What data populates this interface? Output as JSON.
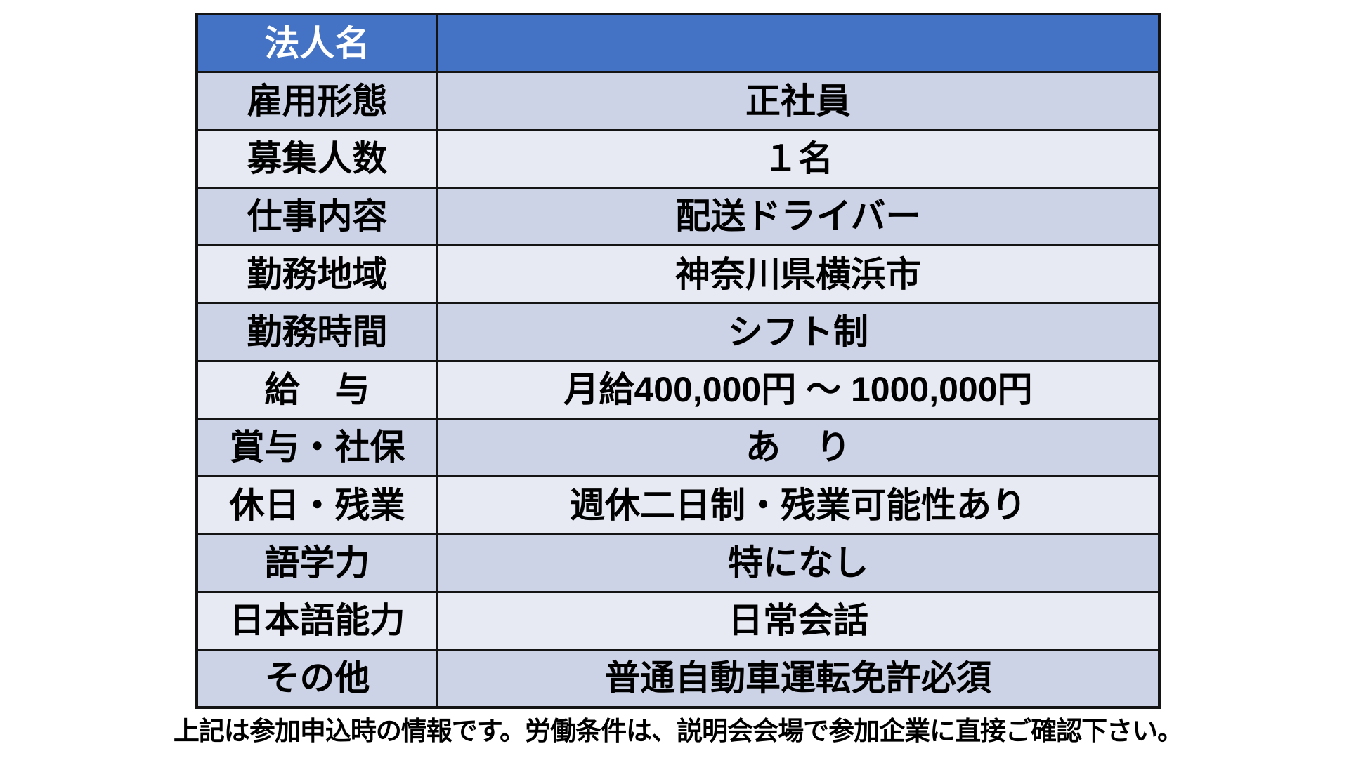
{
  "colors": {
    "header_bg": "#4472C4",
    "header_text": "#FFFFFF",
    "row_dark_bg": "#CDD3E6",
    "row_light_bg": "#E8EAF3",
    "border": "#141414",
    "body_text": "#000000",
    "page_bg": "#FFFFFF"
  },
  "table": {
    "header": {
      "label": "法人名",
      "value": ""
    },
    "rows": [
      {
        "label": "雇用形態",
        "value": "正社員"
      },
      {
        "label": "募集人数",
        "value": "１名"
      },
      {
        "label": "仕事内容",
        "value": "配送ドライバー"
      },
      {
        "label": "勤務地域",
        "value": "神奈川県横浜市"
      },
      {
        "label": "勤務時間",
        "value": "シフト制"
      },
      {
        "label": "給　与",
        "value": "月給400,000円 ～ 1000,000円"
      },
      {
        "label": "賞与・社保",
        "value": "あ　り"
      },
      {
        "label": "休日・残業",
        "value": "週休二日制・残業可能性あり"
      },
      {
        "label": "語学力",
        "value": "特になし"
      },
      {
        "label": "日本語能力",
        "value": "日常会話"
      },
      {
        "label": "その他",
        "value": "普通自動車運転免許必須"
      }
    ]
  },
  "footer": {
    "note": "上記は参加申込時の情報です。労働条件は、説明会会場で参加企業に直接ご確認下さい。"
  }
}
